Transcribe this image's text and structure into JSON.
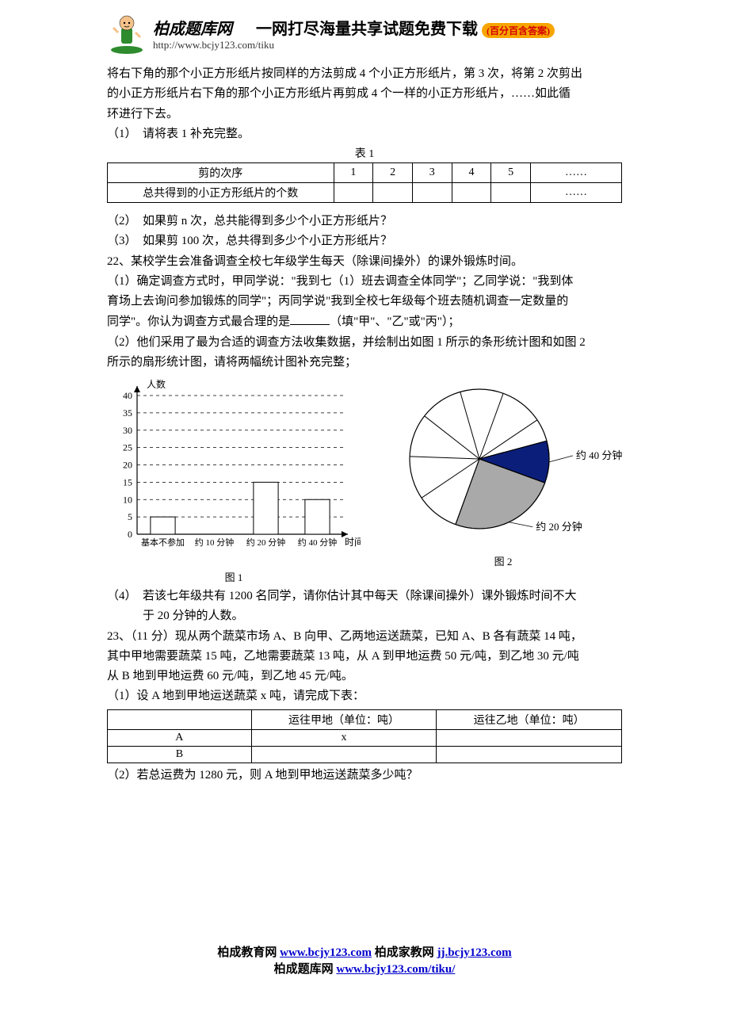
{
  "header": {
    "brand": "柏成题库网",
    "slogan": "一网打尽海量共享试题免费下载",
    "badge": "(百分百含答案)",
    "url": "http://www.bcjy123.com/tiku"
  },
  "intro": {
    "l1": "将右下角的那个小正方形纸片按同样的方法剪成 4 个小正方形纸片，第 3 次，将第 2 次剪出",
    "l2": "的小正方形纸片右下角的那个小正方形纸片再剪成 4 个一样的小正方形纸片，……如此循",
    "l3": "环进行下去。"
  },
  "q1": "（1）　请将表 1 补充完整。",
  "table1": {
    "caption": "表 1",
    "r1h": "剪的次序",
    "r2h": "总共得到的小正方形纸片的个数",
    "cols": [
      "1",
      "2",
      "3",
      "4",
      "5",
      "……"
    ],
    "r2last": "……"
  },
  "q2": "（2）　如果剪 n 次，总共能得到多少个小正方形纸片？",
  "q3": "（3）　如果剪 100 次，总共得到多少个小正方形纸片？",
  "p22a": "22、某校学生会准备调查全校七年级学生每天（除课间操外）的课外锻炼时间。",
  "p22b": "（1）确定调查方式时，甲同学说：\"我到七（1）班去调查全体同学\"；乙同学说：\"我到体",
  "p22c": "育场上去询问参加锻炼的同学\"；丙同学说\"我到全校七年级每个班去随机调查一定数量的",
  "p22d_pre": "同学\"。你认为调查方式最合理的是",
  "p22d_post": "（填\"甲\"、\"乙\"或\"丙\"）；",
  "p22e": "（2）他们采用了最为合适的调查方法收集数据，并绘制出如图 1 所示的条形统计图和如图 2",
  "p22f": "所示的扇形统计图，请将两幅统计图补充完整；",
  "barchart": {
    "ylabel": "人数",
    "xlabel": "时间",
    "ymax": 40,
    "ytick_step": 5,
    "categories": [
      "基本不参加",
      "约 10 分钟",
      "约 20 分钟",
      "约 40 分钟"
    ],
    "values": [
      5,
      null,
      15,
      10
    ],
    "bar_color": "#ffffff",
    "bar_border": "#000000",
    "grid_color": "#000000",
    "caption": "图 1"
  },
  "piechart": {
    "slices": [
      {
        "start": 345,
        "end": 380,
        "fill": "#0b1f7a",
        "label": "约 40 分钟"
      },
      {
        "start": 380,
        "end": 470,
        "fill": "#a9a9a9",
        "label": "约 20 分钟"
      }
    ],
    "spokes": [
      110,
      146,
      182,
      218,
      254,
      290,
      326,
      345
    ],
    "radius": 88,
    "stroke": "#000000",
    "caption": "图 2"
  },
  "p22g": "（4）　若该七年级共有 1200 名同学，请你估计其中每天（除课间操外）课外锻炼时间不大",
  "p22h": "　　　于 20 分钟的人数。",
  "p23a": "23、（11 分）现从两个蔬菜市场 A、B 向甲、乙两地运送蔬菜，已知 A、B 各有蔬菜 14 吨，",
  "p23b": "其中甲地需要蔬菜 15 吨，乙地需要蔬菜 13 吨，从 A 到甲地运费 50 元/吨，到乙地 30 元/吨",
  "p23c": "从 B 地到甲地运费 60 元/吨，到乙地 45 元/吨。",
  "p23d": "（1）设 A 地到甲地运送蔬菜 x 吨，请完成下表：",
  "table2": {
    "h1": "运往甲地（单位：吨）",
    "h2": "运往乙地（单位：吨）",
    "rA": "A",
    "rAx": "x",
    "rB": "B"
  },
  "p23e": "（2）若总运费为 1280 元，则 A 地到甲地运送蔬菜多少吨？",
  "footer": {
    "l1a": "柏成教育网 ",
    "l1b": "www.bcjy123.com",
    "l1c": "  柏成家教网 ",
    "l1d": "jj.bcjy123.com",
    "l2a": "柏成题库网 ",
    "l2b": "www.bcjy123.com/tiku/"
  }
}
